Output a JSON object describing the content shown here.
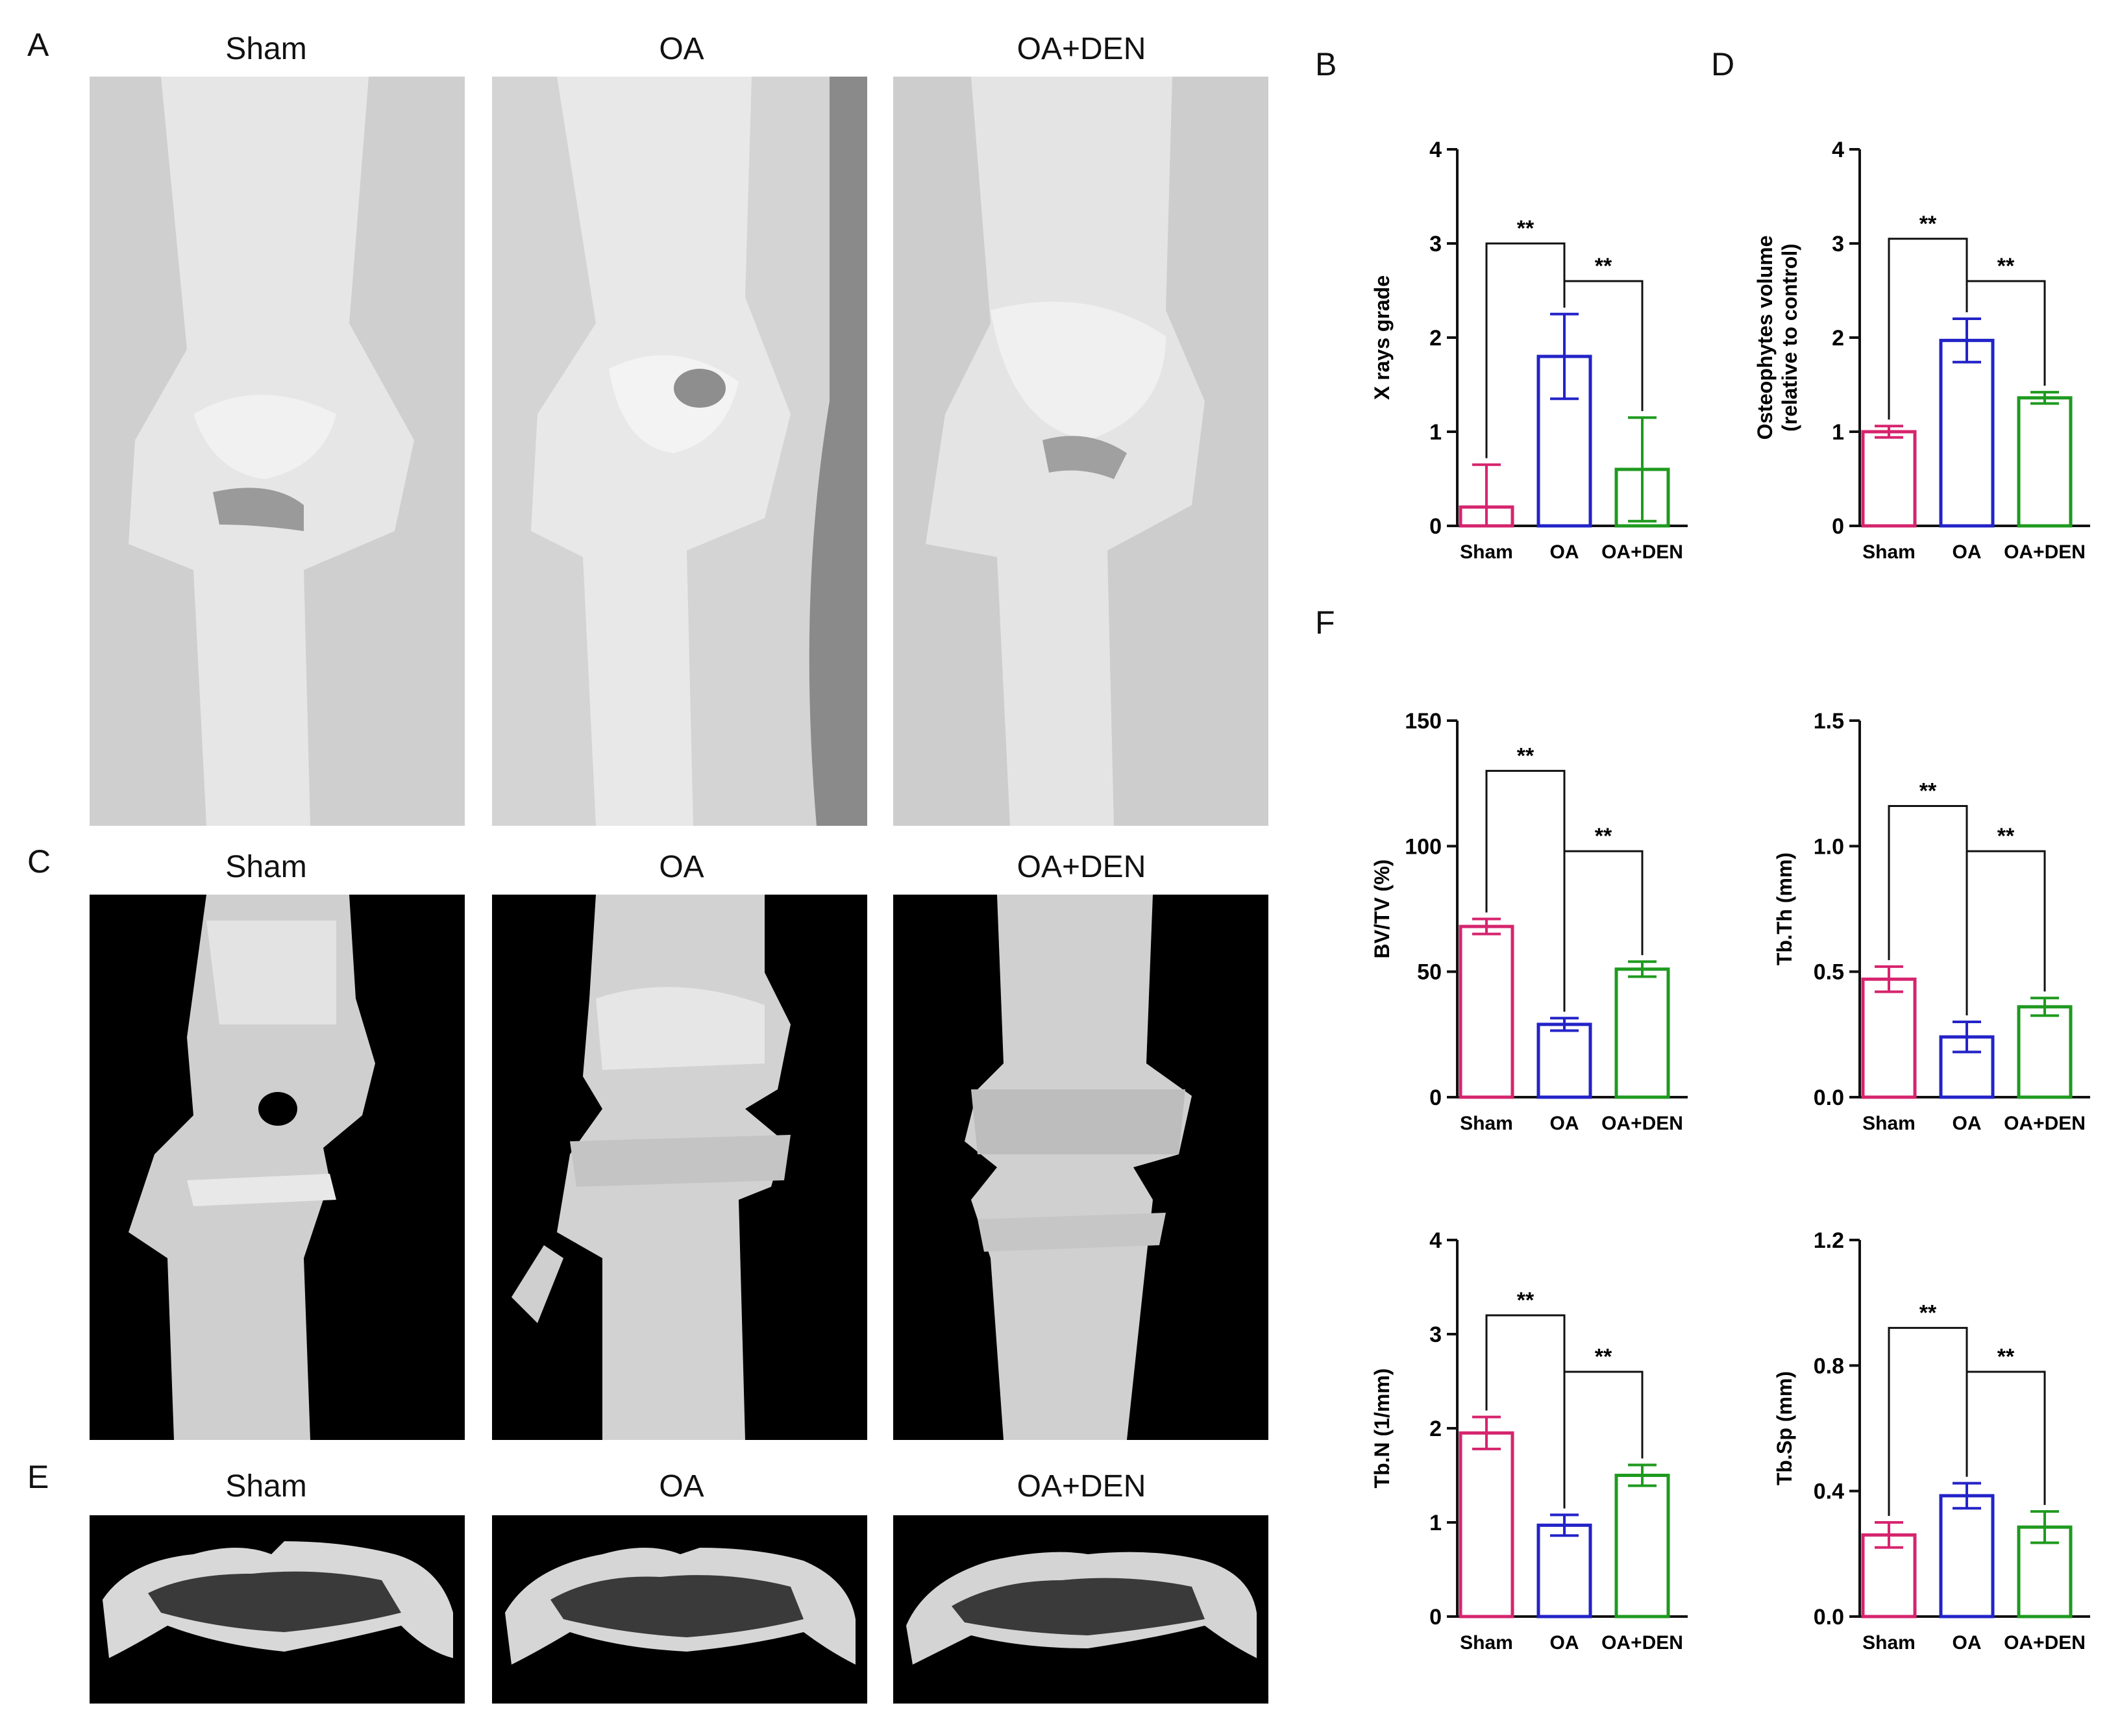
{
  "panel_letters": {
    "A": "A",
    "B": "B",
    "C": "C",
    "D": "D",
    "E": "E",
    "F": "F"
  },
  "groups": [
    "Sham",
    "OA",
    "OA+DEN"
  ],
  "colors": {
    "Sham": "#d6246e",
    "OA": "#2323c8",
    "OA+DEN": "#1f9a1f"
  },
  "significance_label": "**",
  "chart_data": [
    {
      "id": "B",
      "type": "bar",
      "categories": [
        "Sham",
        "OA",
        "OA+DEN"
      ],
      "values": [
        0.2,
        1.8,
        0.6
      ],
      "errors": [
        0.45,
        0.45,
        0.55
      ],
      "ylabel": "X rays grade",
      "ylim": [
        0,
        4
      ],
      "yticks": [
        "0",
        "1",
        "2",
        "3",
        "4"
      ],
      "brackets": [
        {
          "from": 0,
          "to": 1,
          "y": 3.0,
          "label": "**"
        },
        {
          "from": 1,
          "to": 2,
          "y": 2.6,
          "label": "**"
        }
      ]
    },
    {
      "id": "D",
      "type": "bar",
      "categories": [
        "Sham",
        "OA",
        "OA+DEN"
      ],
      "values": [
        1.0,
        1.97,
        1.36
      ],
      "errors": [
        0.06,
        0.23,
        0.06
      ],
      "ylabel": "Osteophytes volume",
      "ylabel2": "(relative to control)",
      "ylim": [
        0,
        4
      ],
      "yticks": [
        "0",
        "1",
        "2",
        "3",
        "4"
      ],
      "brackets": [
        {
          "from": 0,
          "to": 1,
          "y": 3.05,
          "label": "**"
        },
        {
          "from": 1,
          "to": 2,
          "y": 2.6,
          "label": "**"
        }
      ]
    },
    {
      "id": "F1",
      "type": "bar",
      "categories": [
        "Sham",
        "OA",
        "OA+DEN"
      ],
      "values": [
        68,
        29,
        51
      ],
      "errors": [
        3,
        2.5,
        3
      ],
      "ylabel": "BV/TV (%)",
      "ylim": [
        0,
        150
      ],
      "yticks": [
        "0",
        "50",
        "100",
        "150"
      ],
      "brackets": [
        {
          "from": 0,
          "to": 1,
          "y": 130,
          "label": "**"
        },
        {
          "from": 1,
          "to": 2,
          "y": 98,
          "label": "**"
        }
      ]
    },
    {
      "id": "F2",
      "type": "bar",
      "categories": [
        "Sham",
        "OA",
        "OA+DEN"
      ],
      "values": [
        0.47,
        0.24,
        0.36
      ],
      "errors": [
        0.05,
        0.06,
        0.035
      ],
      "ylabel": "Tb.Th (mm)",
      "ylim": [
        0,
        1.5
      ],
      "yticks": [
        "0.0",
        "0.5",
        "1.0",
        "1.5"
      ],
      "brackets": [
        {
          "from": 0,
          "to": 1,
          "y": 1.16,
          "label": "**"
        },
        {
          "from": 1,
          "to": 2,
          "y": 0.98,
          "label": "**"
        }
      ]
    },
    {
      "id": "F3",
      "type": "bar",
      "categories": [
        "Sham",
        "OA",
        "OA+DEN"
      ],
      "values": [
        1.95,
        0.97,
        1.5
      ],
      "errors": [
        0.17,
        0.11,
        0.11
      ],
      "ylabel": "Tb.N (1/mm)",
      "ylim": [
        0,
        4
      ],
      "yticks": [
        "0",
        "1",
        "2",
        "3",
        "4"
      ],
      "brackets": [
        {
          "from": 0,
          "to": 1,
          "y": 3.2,
          "label": "**"
        },
        {
          "from": 1,
          "to": 2,
          "y": 2.6,
          "label": "**"
        }
      ]
    },
    {
      "id": "F4",
      "type": "bar",
      "categories": [
        "Sham",
        "OA",
        "OA+DEN"
      ],
      "values": [
        0.26,
        0.385,
        0.285
      ],
      "errors": [
        0.04,
        0.04,
        0.05
      ],
      "ylabel": "Tb.Sp (mm)",
      "ylim": [
        0,
        1.2
      ],
      "yticks": [
        "0.0",
        "0.4",
        "0.8",
        "1.2"
      ],
      "brackets": [
        {
          "from": 0,
          "to": 1,
          "y": 0.92,
          "label": "**"
        },
        {
          "from": 1,
          "to": 2,
          "y": 0.78,
          "label": "**"
        }
      ]
    }
  ]
}
